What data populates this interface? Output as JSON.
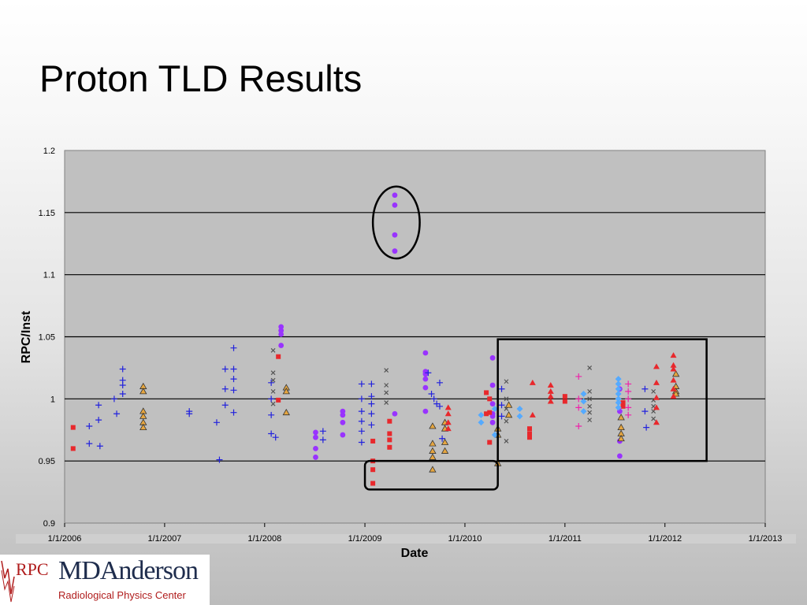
{
  "slide": {
    "title": "Proton TLD Results"
  },
  "logo": {
    "rpc_letters": "RPC",
    "institution": "MDAnderson",
    "center_name": "Radiological Physics Center"
  },
  "colors": {
    "plot_background": "#c0c0c0",
    "grid_line": "#000000",
    "purple": "#9933ff",
    "blue_plus": "#2222dd",
    "red": "#e8282c",
    "gray_x": "#555555",
    "tan_triangle": "#e6a640",
    "light_blue": "#55aaff",
    "magenta_plus": "#ee22aa",
    "annotation": "#000000"
  },
  "chart_data": {
    "type": "scatter",
    "xlabel": "Date",
    "ylabel": "RPC/Inst",
    "xlim": [
      "2006-01-01",
      "2013-01-01"
    ],
    "ylim": [
      0.9,
      1.2
    ],
    "xticks": [
      "1/1/2006",
      "1/1/2007",
      "1/1/2008",
      "1/1/2009",
      "1/1/2010",
      "1/1/2011",
      "1/1/2012",
      "1/1/2013"
    ],
    "yticks": [
      "0.9",
      "0.95",
      "1",
      "1.05",
      "1.1",
      "1.15",
      "1.2"
    ],
    "grid": "horizontal",
    "legend": "none",
    "series": [
      {
        "marker": "circle",
        "color": "#9933ff",
        "points": [
          [
            "2008-03-01",
            1.058
          ],
          [
            "2008-03-01",
            1.055
          ],
          [
            "2008-03-01",
            1.052
          ],
          [
            "2008-03-01",
            1.043
          ],
          [
            "2008-07-05",
            0.973
          ],
          [
            "2008-07-05",
            0.969
          ],
          [
            "2008-07-05",
            0.96
          ],
          [
            "2008-07-05",
            0.953
          ],
          [
            "2008-10-12",
            0.99
          ],
          [
            "2008-10-12",
            0.987
          ],
          [
            "2008-10-12",
            0.981
          ],
          [
            "2008-10-12",
            0.971
          ],
          [
            "2009-04-20",
            1.164
          ],
          [
            "2009-04-20",
            1.156
          ],
          [
            "2009-04-20",
            1.132
          ],
          [
            "2009-04-20",
            1.119
          ],
          [
            "2009-04-20",
            0.988
          ],
          [
            "2009-08-10",
            1.037
          ],
          [
            "2009-08-10",
            1.022
          ],
          [
            "2009-08-10",
            1.02
          ],
          [
            "2009-08-10",
            1.016
          ],
          [
            "2009-08-10",
            1.009
          ],
          [
            "2009-08-10",
            0.99
          ],
          [
            "2010-04-12",
            1.033
          ],
          [
            "2010-04-12",
            1.011
          ],
          [
            "2010-04-12",
            0.996
          ],
          [
            "2010-04-12",
            0.988
          ],
          [
            "2010-04-12",
            0.986
          ],
          [
            "2010-04-12",
            0.981
          ],
          [
            "2011-07-20",
            1.008
          ],
          [
            "2011-07-20",
            0.99
          ],
          [
            "2011-07-20",
            0.966
          ],
          [
            "2011-07-20",
            0.954
          ]
        ]
      },
      {
        "marker": "plus",
        "color": "#2222dd",
        "points": [
          [
            "2006-04-01",
            0.978
          ],
          [
            "2006-04-01",
            0.964
          ],
          [
            "2006-05-05",
            0.995
          ],
          [
            "2006-05-05",
            0.983
          ],
          [
            "2006-05-10",
            0.962
          ],
          [
            "2006-07-01",
            1.0
          ],
          [
            "2006-07-10",
            0.988
          ],
          [
            "2006-08-01",
            1.024
          ],
          [
            "2006-08-01",
            1.015
          ],
          [
            "2006-08-01",
            1.011
          ],
          [
            "2006-08-01",
            1.004
          ],
          [
            "2007-09-10",
            1.041
          ],
          [
            "2007-09-10",
            1.024
          ],
          [
            "2007-09-10",
            1.016
          ],
          [
            "2007-09-10",
            1.007
          ],
          [
            "2007-09-10",
            0.989
          ],
          [
            "2007-04-01",
            0.99
          ],
          [
            "2007-04-01",
            0.988
          ],
          [
            "2007-07-10",
            0.981
          ],
          [
            "2007-07-20",
            0.951
          ],
          [
            "2007-08-10",
            1.024
          ],
          [
            "2007-08-10",
            1.008
          ],
          [
            "2007-08-10",
            0.995
          ],
          [
            "2008-01-25",
            1.013
          ],
          [
            "2008-01-25",
            1.0
          ],
          [
            "2008-01-25",
            0.987
          ],
          [
            "2008-01-25",
            0.972
          ],
          [
            "2008-02-10",
            0.969
          ],
          [
            "2008-08-01",
            0.974
          ],
          [
            "2008-08-01",
            0.967
          ],
          [
            "2008-12-20",
            1.012
          ],
          [
            "2008-12-20",
            1.0
          ],
          [
            "2008-12-20",
            0.99
          ],
          [
            "2008-12-20",
            0.982
          ],
          [
            "2008-12-20",
            0.974
          ],
          [
            "2008-12-20",
            0.965
          ],
          [
            "2009-01-25",
            1.012
          ],
          [
            "2009-01-25",
            1.002
          ],
          [
            "2009-01-25",
            0.996
          ],
          [
            "2009-01-25",
            0.988
          ],
          [
            "2009-01-25",
            0.979
          ],
          [
            "2009-08-20",
            1.021
          ],
          [
            "2009-09-01",
            1.004
          ],
          [
            "2009-09-10",
            1.0
          ],
          [
            "2009-09-20",
            0.996
          ],
          [
            "2009-10-01",
            1.013
          ],
          [
            "2009-10-01",
            0.994
          ],
          [
            "2009-10-10",
            0.968
          ],
          [
            "2010-05-15",
            1.008
          ],
          [
            "2010-05-15",
            0.995
          ],
          [
            "2010-05-15",
            0.986
          ],
          [
            "2011-10-20",
            1.008
          ],
          [
            "2011-10-20",
            0.99
          ],
          [
            "2011-10-25",
            0.977
          ]
        ]
      },
      {
        "marker": "square",
        "color": "#e8282c",
        "points": [
          [
            "2006-02-01",
            0.977
          ],
          [
            "2006-02-01",
            0.96
          ],
          [
            "2008-02-20",
            1.034
          ],
          [
            "2008-02-20",
            0.999
          ],
          [
            "2009-01-30",
            0.966
          ],
          [
            "2009-01-30",
            0.95
          ],
          [
            "2009-01-30",
            0.943
          ],
          [
            "2009-01-30",
            0.932
          ],
          [
            "2009-04-01",
            0.982
          ],
          [
            "2009-04-01",
            0.972
          ],
          [
            "2009-04-01",
            0.967
          ],
          [
            "2009-04-01",
            0.961
          ],
          [
            "2010-03-20",
            1.005
          ],
          [
            "2010-03-20",
            0.988
          ],
          [
            "2010-04-01",
            1.0
          ],
          [
            "2010-04-01",
            0.989
          ],
          [
            "2010-04-01",
            0.965
          ],
          [
            "2010-08-25",
            0.976
          ],
          [
            "2010-08-25",
            0.972
          ],
          [
            "2010-08-25",
            0.969
          ],
          [
            "2011-01-01",
            1.002
          ],
          [
            "2011-01-01",
            0.998
          ],
          [
            "2011-08-01",
            0.997
          ],
          [
            "2011-08-01",
            0.994
          ]
        ]
      },
      {
        "marker": "cross",
        "color": "#555555",
        "points": [
          [
            "2008-02-01",
            1.039
          ],
          [
            "2008-02-01",
            1.021
          ],
          [
            "2008-02-01",
            1.015
          ],
          [
            "2008-02-01",
            1.006
          ],
          [
            "2008-02-01",
            0.996
          ],
          [
            "2009-03-20",
            1.023
          ],
          [
            "2009-03-20",
            1.011
          ],
          [
            "2009-03-20",
            1.005
          ],
          [
            "2009-03-20",
            0.997
          ],
          [
            "2010-06-01",
            1.014
          ],
          [
            "2010-06-01",
            1.0
          ],
          [
            "2010-06-01",
            0.992
          ],
          [
            "2010-06-01",
            0.982
          ],
          [
            "2010-06-01",
            0.966
          ],
          [
            "2011-04-01",
            1.025
          ],
          [
            "2011-04-01",
            1.006
          ],
          [
            "2011-04-01",
            1.0
          ],
          [
            "2011-04-01",
            0.994
          ],
          [
            "2011-04-01",
            0.989
          ],
          [
            "2011-04-01",
            0.983
          ],
          [
            "2011-11-20",
            1.006
          ],
          [
            "2011-11-20",
            0.999
          ],
          [
            "2011-11-20",
            0.994
          ],
          [
            "2011-11-20",
            0.99
          ],
          [
            "2011-11-20",
            0.984
          ]
        ]
      },
      {
        "marker": "triangle",
        "color": "#e6a640",
        "points": [
          [
            "2006-10-15",
            1.01
          ],
          [
            "2006-10-15",
            1.006
          ],
          [
            "2006-10-15",
            0.99
          ],
          [
            "2006-10-15",
            0.986
          ],
          [
            "2006-10-15",
            0.981
          ],
          [
            "2006-10-15",
            0.977
          ],
          [
            "2008-03-20",
            1.009
          ],
          [
            "2008-03-20",
            1.006
          ],
          [
            "2008-03-20",
            0.989
          ],
          [
            "2009-09-05",
            0.978
          ],
          [
            "2009-09-05",
            0.964
          ],
          [
            "2009-09-05",
            0.958
          ],
          [
            "2009-09-05",
            0.953
          ],
          [
            "2009-09-05",
            0.943
          ],
          [
            "2009-10-20",
            0.981
          ],
          [
            "2009-10-20",
            0.976
          ],
          [
            "2009-10-20",
            0.965
          ],
          [
            "2009-10-20",
            0.958
          ],
          [
            "2010-05-01",
            0.976
          ],
          [
            "2010-05-01",
            0.971
          ],
          [
            "2010-05-01",
            0.948
          ],
          [
            "2010-06-10",
            0.995
          ],
          [
            "2010-06-10",
            0.987
          ],
          [
            "2011-07-25",
            0.985
          ],
          [
            "2011-07-25",
            0.977
          ],
          [
            "2011-07-25",
            0.972
          ],
          [
            "2011-07-25",
            0.968
          ],
          [
            "2012-02-10",
            1.02
          ],
          [
            "2012-02-10",
            1.01
          ],
          [
            "2012-02-10",
            1.006
          ],
          [
            "2012-02-10",
            1.004
          ]
        ]
      },
      {
        "marker": "diamond",
        "color": "#55aaff",
        "points": [
          [
            "2010-03-01",
            0.987
          ],
          [
            "2010-03-01",
            0.981
          ],
          [
            "2010-04-20",
            0.992
          ],
          [
            "2010-04-20",
            0.971
          ],
          [
            "2010-07-20",
            0.992
          ],
          [
            "2010-07-20",
            0.986
          ],
          [
            "2011-03-10",
            1.004
          ],
          [
            "2011-03-10",
            0.998
          ],
          [
            "2011-03-10",
            0.99
          ],
          [
            "2011-07-15",
            1.016
          ],
          [
            "2011-07-15",
            1.012
          ],
          [
            "2011-07-15",
            1.008
          ],
          [
            "2011-07-15",
            1.004
          ],
          [
            "2011-07-15",
            1.0
          ],
          [
            "2011-07-15",
            0.997
          ],
          [
            "2011-07-15",
            0.993
          ]
        ]
      },
      {
        "marker": "triangle-filled",
        "color": "#e8282c",
        "points": [
          [
            "2009-11-01",
            0.993
          ],
          [
            "2009-11-01",
            0.988
          ],
          [
            "2009-11-01",
            0.981
          ],
          [
            "2009-11-01",
            0.976
          ],
          [
            "2010-09-05",
            1.013
          ],
          [
            "2010-09-05",
            0.987
          ],
          [
            "2010-11-10",
            1.011
          ],
          [
            "2010-11-10",
            1.006
          ],
          [
            "2010-11-10",
            1.002
          ],
          [
            "2010-11-10",
            0.998
          ],
          [
            "2011-12-01",
            1.026
          ],
          [
            "2011-12-01",
            1.013
          ],
          [
            "2011-12-01",
            1.001
          ],
          [
            "2011-12-01",
            0.993
          ],
          [
            "2011-12-01",
            0.981
          ],
          [
            "2012-02-01",
            1.035
          ],
          [
            "2012-02-01",
            1.027
          ],
          [
            "2012-02-01",
            1.024
          ],
          [
            "2012-02-01",
            1.015
          ],
          [
            "2012-02-01",
            1.008
          ],
          [
            "2012-02-01",
            1.002
          ]
        ]
      },
      {
        "marker": "plus",
        "color": "#ee22aa",
        "points": [
          [
            "2011-02-20",
            1.018
          ],
          [
            "2011-02-20",
            1.0
          ],
          [
            "2011-02-20",
            0.993
          ],
          [
            "2011-02-20",
            0.978
          ],
          [
            "2011-08-20",
            1.012
          ],
          [
            "2011-08-20",
            1.006
          ],
          [
            "2011-08-20",
            1.0
          ],
          [
            "2011-08-20",
            0.993
          ],
          [
            "2011-08-20",
            0.987
          ]
        ]
      }
    ],
    "annotations": [
      {
        "shape": "ellipse",
        "x": [
          "2009-01-30",
          "2009-07-20"
        ],
        "y": [
          1.113,
          1.171
        ]
      },
      {
        "shape": "rectangle",
        "x": [
          "2010-05-01",
          "2012-06-01"
        ],
        "y": [
          0.95,
          1.048
        ]
      },
      {
        "shape": "rounded-rectangle",
        "x": [
          "2009-01-01",
          "2010-05-01"
        ],
        "y": [
          0.927,
          0.95
        ]
      }
    ]
  }
}
